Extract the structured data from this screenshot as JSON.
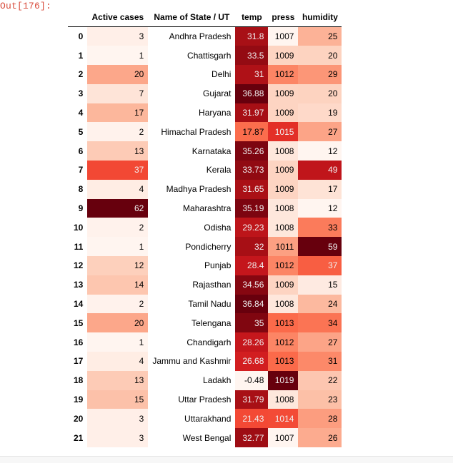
{
  "prompt": "Out[176]:",
  "table": {
    "columns": [
      "",
      "Active cases",
      "Name of State / UT",
      "temp",
      "press",
      "humidity"
    ],
    "rows": [
      {
        "idx": "0",
        "active": "3",
        "state": "Andhra Pradesh",
        "temp": "31.8",
        "press": "1007",
        "hum": "25"
      },
      {
        "idx": "1",
        "active": "1",
        "state": "Chattisgarh",
        "temp": "33.5",
        "press": "1009",
        "hum": "20"
      },
      {
        "idx": "2",
        "active": "20",
        "state": "Delhi",
        "temp": "31",
        "press": "1012",
        "hum": "29"
      },
      {
        "idx": "3",
        "active": "7",
        "state": "Gujarat",
        "temp": "36.88",
        "press": "1009",
        "hum": "20"
      },
      {
        "idx": "4",
        "active": "17",
        "state": "Haryana",
        "temp": "31.97",
        "press": "1009",
        "hum": "19"
      },
      {
        "idx": "5",
        "active": "2",
        "state": "Himachal Pradesh",
        "temp": "17.87",
        "press": "1015",
        "hum": "27"
      },
      {
        "idx": "6",
        "active": "13",
        "state": "Karnataka",
        "temp": "35.26",
        "press": "1008",
        "hum": "12"
      },
      {
        "idx": "7",
        "active": "37",
        "state": "Kerala",
        "temp": "33.73",
        "press": "1009",
        "hum": "49"
      },
      {
        "idx": "8",
        "active": "4",
        "state": "Madhya Pradesh",
        "temp": "31.65",
        "press": "1009",
        "hum": "17"
      },
      {
        "idx": "9",
        "active": "62",
        "state": "Maharashtra",
        "temp": "35.19",
        "press": "1008",
        "hum": "12"
      },
      {
        "idx": "10",
        "active": "2",
        "state": "Odisha",
        "temp": "29.23",
        "press": "1008",
        "hum": "33"
      },
      {
        "idx": "11",
        "active": "1",
        "state": "Pondicherry",
        "temp": "32",
        "press": "1011",
        "hum": "59"
      },
      {
        "idx": "12",
        "active": "12",
        "state": "Punjab",
        "temp": "28.4",
        "press": "1012",
        "hum": "37"
      },
      {
        "idx": "13",
        "active": "14",
        "state": "Rajasthan",
        "temp": "34.56",
        "press": "1009",
        "hum": "15"
      },
      {
        "idx": "14",
        "active": "2",
        "state": "Tamil Nadu",
        "temp": "36.84",
        "press": "1008",
        "hum": "24"
      },
      {
        "idx": "15",
        "active": "20",
        "state": "Telengana",
        "temp": "35",
        "press": "1013",
        "hum": "34"
      },
      {
        "idx": "16",
        "active": "1",
        "state": "Chandigarh",
        "temp": "28.26",
        "press": "1012",
        "hum": "27"
      },
      {
        "idx": "17",
        "active": "4",
        "state": "Jammu and Kashmir",
        "temp": "26.68",
        "press": "1013",
        "hum": "31"
      },
      {
        "idx": "18",
        "active": "13",
        "state": "Ladakh",
        "temp": "-0.48",
        "press": "1019",
        "hum": "22"
      },
      {
        "idx": "19",
        "active": "15",
        "state": "Uttar Pradesh",
        "temp": "31.79",
        "press": "1008",
        "hum": "23"
      },
      {
        "idx": "20",
        "active": "3",
        "state": "Uttarakhand",
        "temp": "21.43",
        "press": "1014",
        "hum": "28"
      },
      {
        "idx": "21",
        "active": "3",
        "state": "West Bengal",
        "temp": "32.77",
        "press": "1007",
        "hum": "26"
      }
    ]
  },
  "colormap": {
    "name": "Reds",
    "stops": [
      "#fff5f0",
      "#fee0d2",
      "#fcbba1",
      "#fc9272",
      "#fb6a4a",
      "#ef3b2c",
      "#cb181d",
      "#a50f15",
      "#67000d"
    ]
  }
}
